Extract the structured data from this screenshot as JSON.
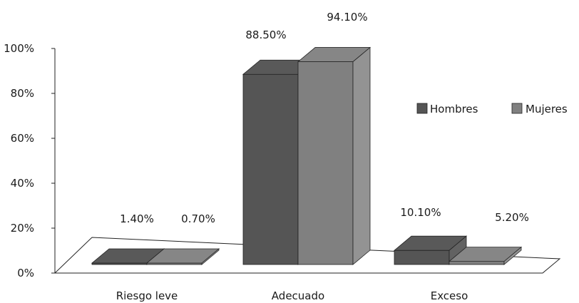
{
  "chart_data": {
    "type": "bar",
    "style": "3d-clustered-column",
    "categories": [
      "Riesgo leve",
      "Adecuado",
      "Exceso"
    ],
    "series": [
      {
        "name": "Hombres",
        "values": [
          1.4,
          88.5,
          10.1
        ],
        "labels": [
          "1.40%",
          "88.50%",
          "10.10%"
        ],
        "color": "#555555"
      },
      {
        "name": "Mujeres",
        "values": [
          0.7,
          94.1,
          5.2
        ],
        "labels": [
          "0.70%",
          "94.10%",
          "5.20%"
        ],
        "color": "#808080"
      }
    ],
    "y_ticks": [
      "0%",
      "20%",
      "40%",
      "60%",
      "80%",
      "100%"
    ],
    "ylim": [
      0,
      100
    ],
    "grid": false,
    "legend_position": "right"
  }
}
